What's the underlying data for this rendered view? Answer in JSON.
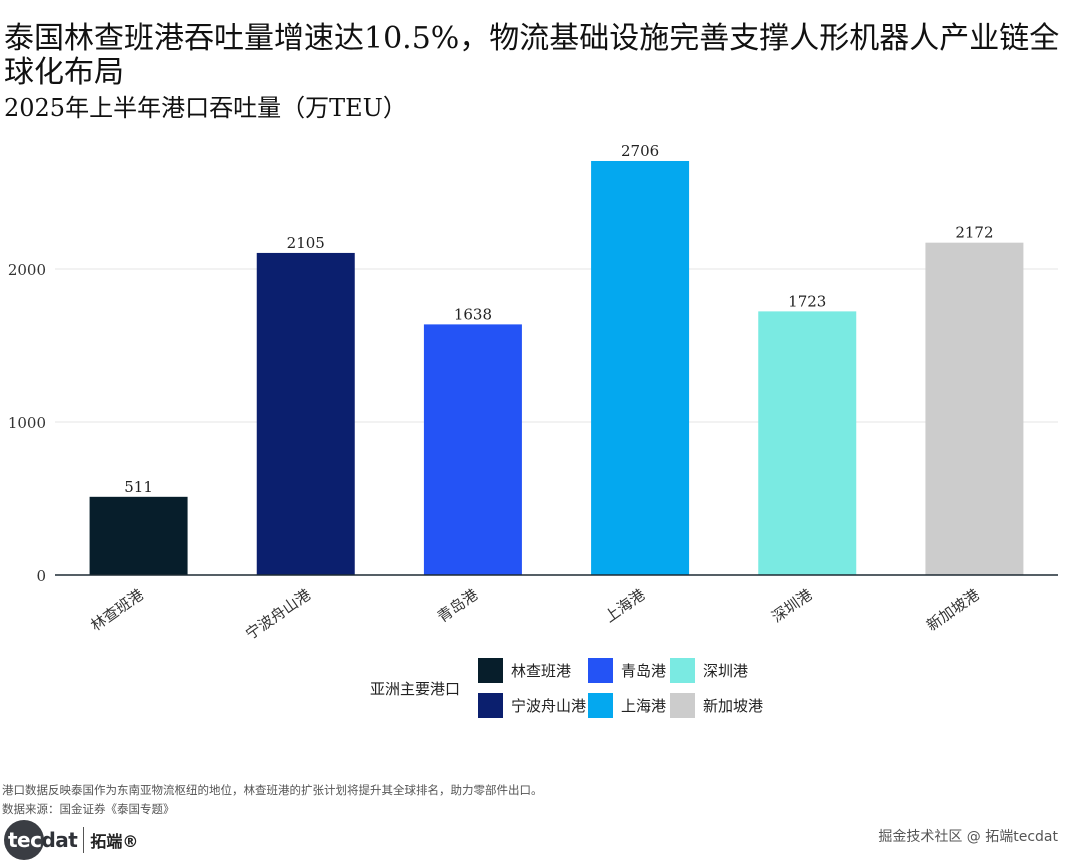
{
  "title": "泰国林查班港吞吐量增速达10.5%，物流基础设施完善支撑人形机器人产业链全球化布局",
  "subtitle": "2025年上半年港口吞吐量（万TEU）",
  "chart_data": {
    "type": "bar",
    "categories": [
      "林查班港",
      "宁波舟山港",
      "青岛港",
      "上海港",
      "深圳港",
      "新加坡港"
    ],
    "values": [
      511,
      2105,
      1638,
      2706,
      1723,
      2172
    ],
    "colors": [
      "#071e2b",
      "#0b1f6e",
      "#2453f5",
      "#04a8ef",
      "#7aeae2",
      "#cccccc"
    ],
    "ylim": [
      0,
      2800
    ],
    "yticks": [
      0,
      1000,
      2000
    ],
    "ytick_labels": [
      "0",
      "1000",
      "2000"
    ],
    "xlabel": "",
    "ylabel": "",
    "grid": true
  },
  "legend": {
    "title": "亚洲主要港口",
    "items": [
      {
        "label": "林查班港",
        "color": "#071e2b"
      },
      {
        "label": "宁波舟山港",
        "color": "#0b1f6e"
      },
      {
        "label": "青岛港",
        "color": "#2453f5"
      },
      {
        "label": "上海港",
        "color": "#04a8ef"
      },
      {
        "label": "深圳港",
        "color": "#7aeae2"
      },
      {
        "label": "新加坡港",
        "color": "#cccccc"
      }
    ]
  },
  "footnote": "港口数据反映泰国作为东南亚物流枢纽的地位，林查班港的扩张计划将提升其全球排名，助力零部件出口。",
  "source": "数据来源：国金证券《泰国专题》",
  "logo": {
    "word_dark": "tec",
    "word_light": "dat",
    "cn": "拓端®"
  },
  "watermark": "掘金技术社区 @ 拓端tecdat"
}
